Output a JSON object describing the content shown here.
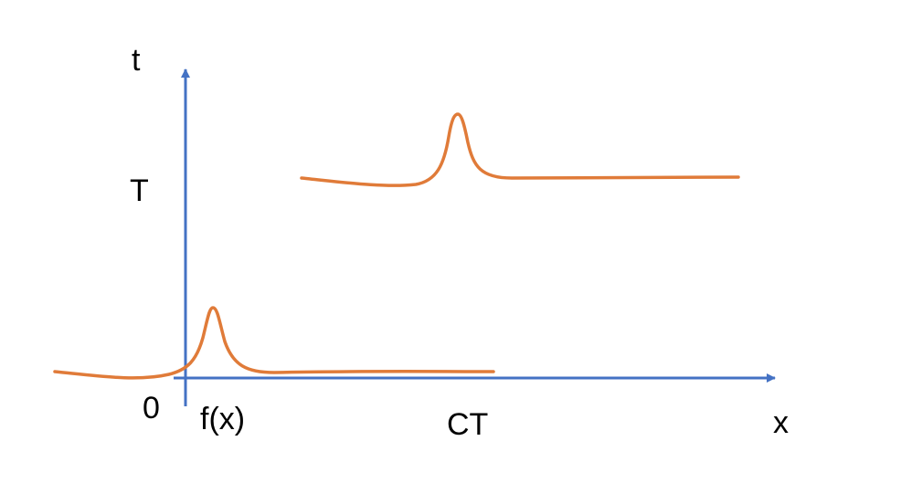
{
  "labels": {
    "t_axis": "t",
    "x_axis": "x",
    "origin": "0",
    "T_level": "T",
    "function": "f(x)",
    "shift": "CT"
  },
  "colors": {
    "axis": "#4472C4",
    "curve": "#E07B39",
    "text": "#000000",
    "background": "#FFFFFF"
  }
}
